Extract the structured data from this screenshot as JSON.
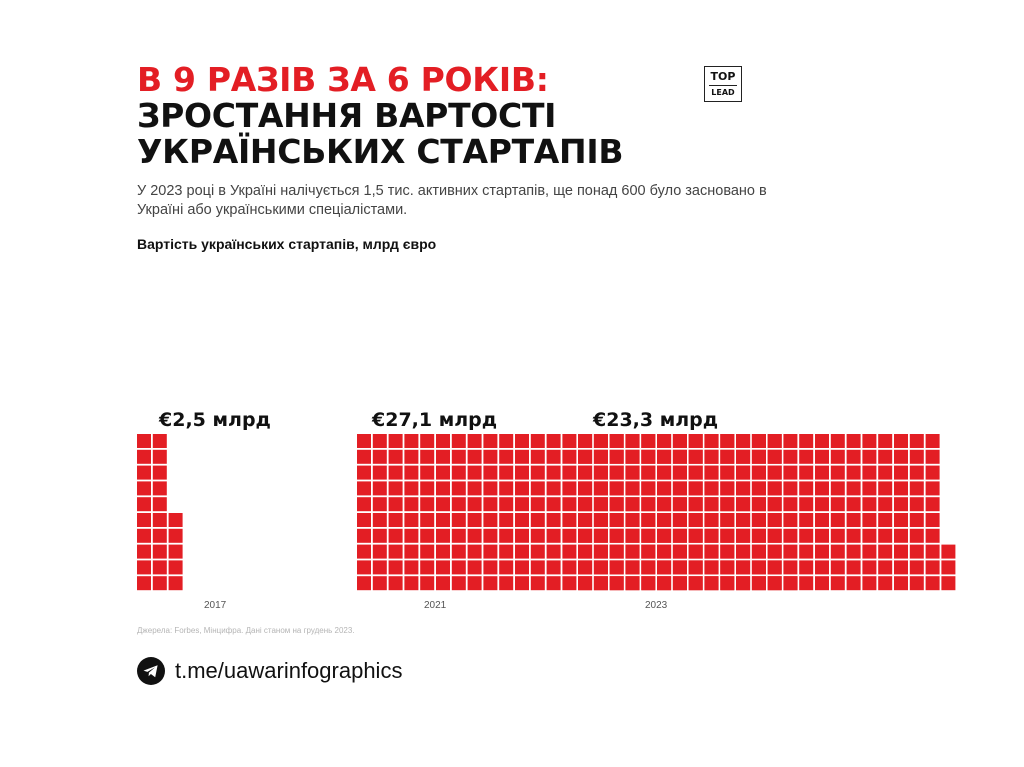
{
  "header": {
    "title_line_1": "В 9 РАЗІВ ЗА 6 РОКІВ:",
    "title_line_2": "ЗРОСТАННЯ ВАРТОСТІ",
    "title_line_3": "УКРАЇНСЬКИХ СТАРТАПІВ",
    "subtitle": "У 2023 році в Україні налічується 1,5 тис. активних стартапів, ще понад 600 було засновано в Україні або українськими спеціалістами.",
    "logo_top": "TOP",
    "logo_bottom": "LEAD"
  },
  "chart_data": {
    "type": "bar",
    "title": "Вартість українських стартапів, млрд євро",
    "categories": [
      "2017",
      "2021",
      "2023"
    ],
    "values": [
      2.5,
      27.1,
      23.3
    ],
    "value_labels": [
      "€2,5 млрд",
      "€27,1 млрд",
      "€23,3 млрд"
    ],
    "unit": "млрд євро",
    "style": "waffle-columns",
    "legend": "none",
    "grid": false
  },
  "footer": {
    "source": "Джерела: Forbes, Мінцифра. Дані станом на грудень 2023.",
    "channel": "t.me/uawarinfographics",
    "icon": "telegram-icon"
  },
  "colors": {
    "accent": "#e31e24",
    "text": "#111111",
    "muted": "#b5b5b5"
  }
}
